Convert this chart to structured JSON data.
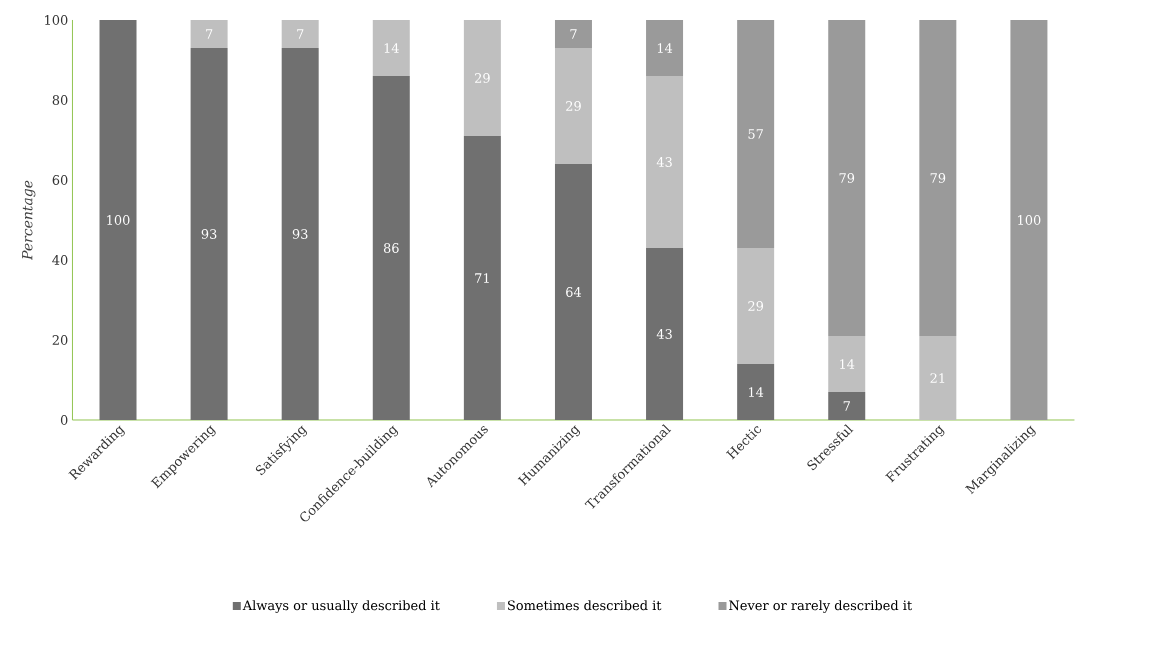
{
  "chart_data": {
    "type": "bar",
    "stacked": true,
    "ylabel": "Percentage",
    "categories": [
      "Rewarding",
      "Empowering",
      "Satisfying",
      "Confidence-building",
      "Autonomous",
      "Humanizing",
      "Transformational",
      "Hectic",
      "Stressful",
      "Frustrating",
      "Marginalizing"
    ],
    "series": [
      {
        "name": "Always or usually described it",
        "color": "#707070",
        "values": [
          100,
          93,
          93,
          86,
          71,
          64,
          43,
          14,
          7,
          0,
          0
        ],
        "value_labels": [
          "100",
          "93",
          "93",
          "86",
          "71",
          "64",
          "43",
          "14",
          "7",
          null,
          null
        ]
      },
      {
        "name": "Sometimes described it",
        "color": "#bfbfbf",
        "values": [
          0,
          7,
          7,
          14,
          29,
          29,
          43,
          29,
          14,
          21,
          0
        ],
        "value_labels": [
          null,
          "7",
          "7",
          "14",
          "29",
          "29",
          "43",
          "29",
          "14",
          "21",
          null
        ]
      },
      {
        "name": "Never or rarely described it",
        "color": "#9a9a9a",
        "values": [
          0,
          0,
          0,
          0,
          0,
          7,
          14,
          57,
          79,
          79,
          100
        ],
        "value_labels": [
          null,
          null,
          null,
          null,
          null,
          "7",
          "14",
          "57",
          "79",
          "79",
          "100"
        ]
      }
    ],
    "ylim": [
      0,
      100
    ],
    "yticks": [
      0,
      20,
      40,
      60,
      80,
      100
    ],
    "legend": "bottom",
    "grid": false
  }
}
